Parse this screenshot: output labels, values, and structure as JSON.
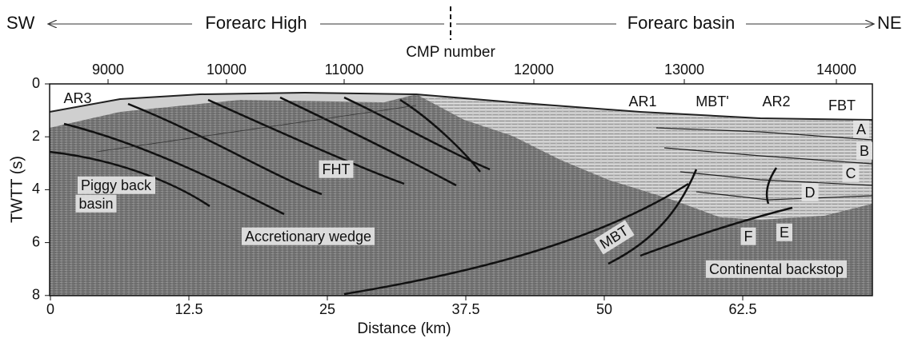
{
  "header": {
    "left": "SW",
    "section_left": "Forearc High",
    "section_right": "Forearc basin",
    "right": "NE"
  },
  "top_axis": {
    "title": "CMP number",
    "ticks": [
      9000,
      10000,
      11000,
      12000,
      13000,
      14000
    ]
  },
  "left_axis": {
    "title": "TWTT (s)",
    "ticks": [
      0,
      2,
      4,
      6,
      8
    ]
  },
  "bottom_axis": {
    "title": "Distance (km)",
    "ticks": [
      0,
      12.5,
      25,
      37.5,
      50,
      62.5
    ]
  },
  "labels": {
    "ar3": "AR3",
    "ar1": "AR1",
    "mbt_prime": "MBT'",
    "ar2": "AR2",
    "fbt": "FBT",
    "a": "A",
    "b": "B",
    "c": "C",
    "d": "D",
    "e": "E",
    "f": "F",
    "fht": "FHT",
    "piggy_back_basin": [
      "Piggy back",
      "basin"
    ],
    "accretionary_wedge": "Accretionary wedge",
    "mbt": "MBT",
    "continental_backstop": "Continental backstop"
  }
}
